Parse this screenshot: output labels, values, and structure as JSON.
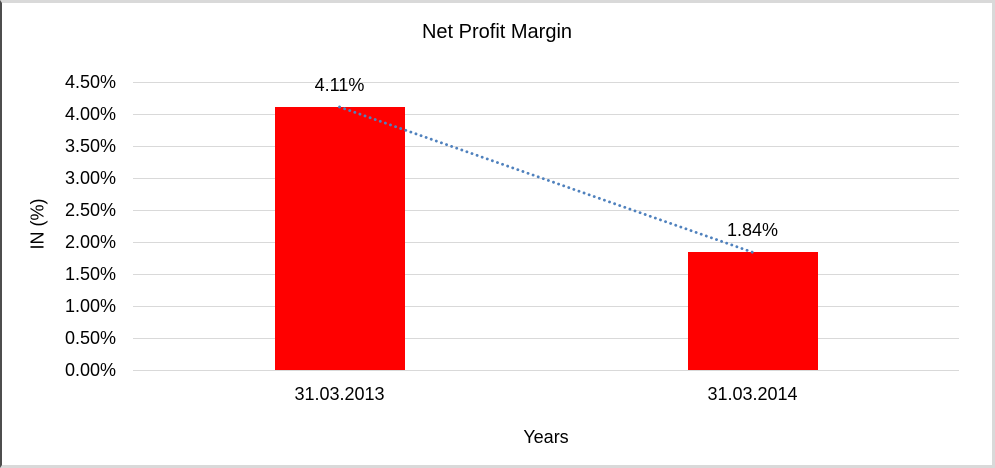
{
  "chart_data": {
    "type": "bar",
    "title": "Net Profit Margin",
    "categories": [
      "31.03.2013",
      "31.03.2014"
    ],
    "values": [
      4.11,
      1.84
    ],
    "data_labels": [
      "4.11%",
      "1.84%"
    ],
    "xlabel": "Years",
    "ylabel": "IN (%)",
    "ylim": [
      0,
      4.5
    ],
    "ytick_step": 0.5,
    "yticks": [
      "4.50%",
      "4.00%",
      "3.50%",
      "3.00%",
      "2.50%",
      "2.00%",
      "1.50%",
      "1.00%",
      "0.50%",
      "0.00%"
    ],
    "grid": true,
    "legend": "none",
    "bar_color": "#ff0000",
    "trendline": {
      "type": "linear",
      "style": "dotted",
      "color": "#4f81bd",
      "connects": "bar tops"
    }
  }
}
